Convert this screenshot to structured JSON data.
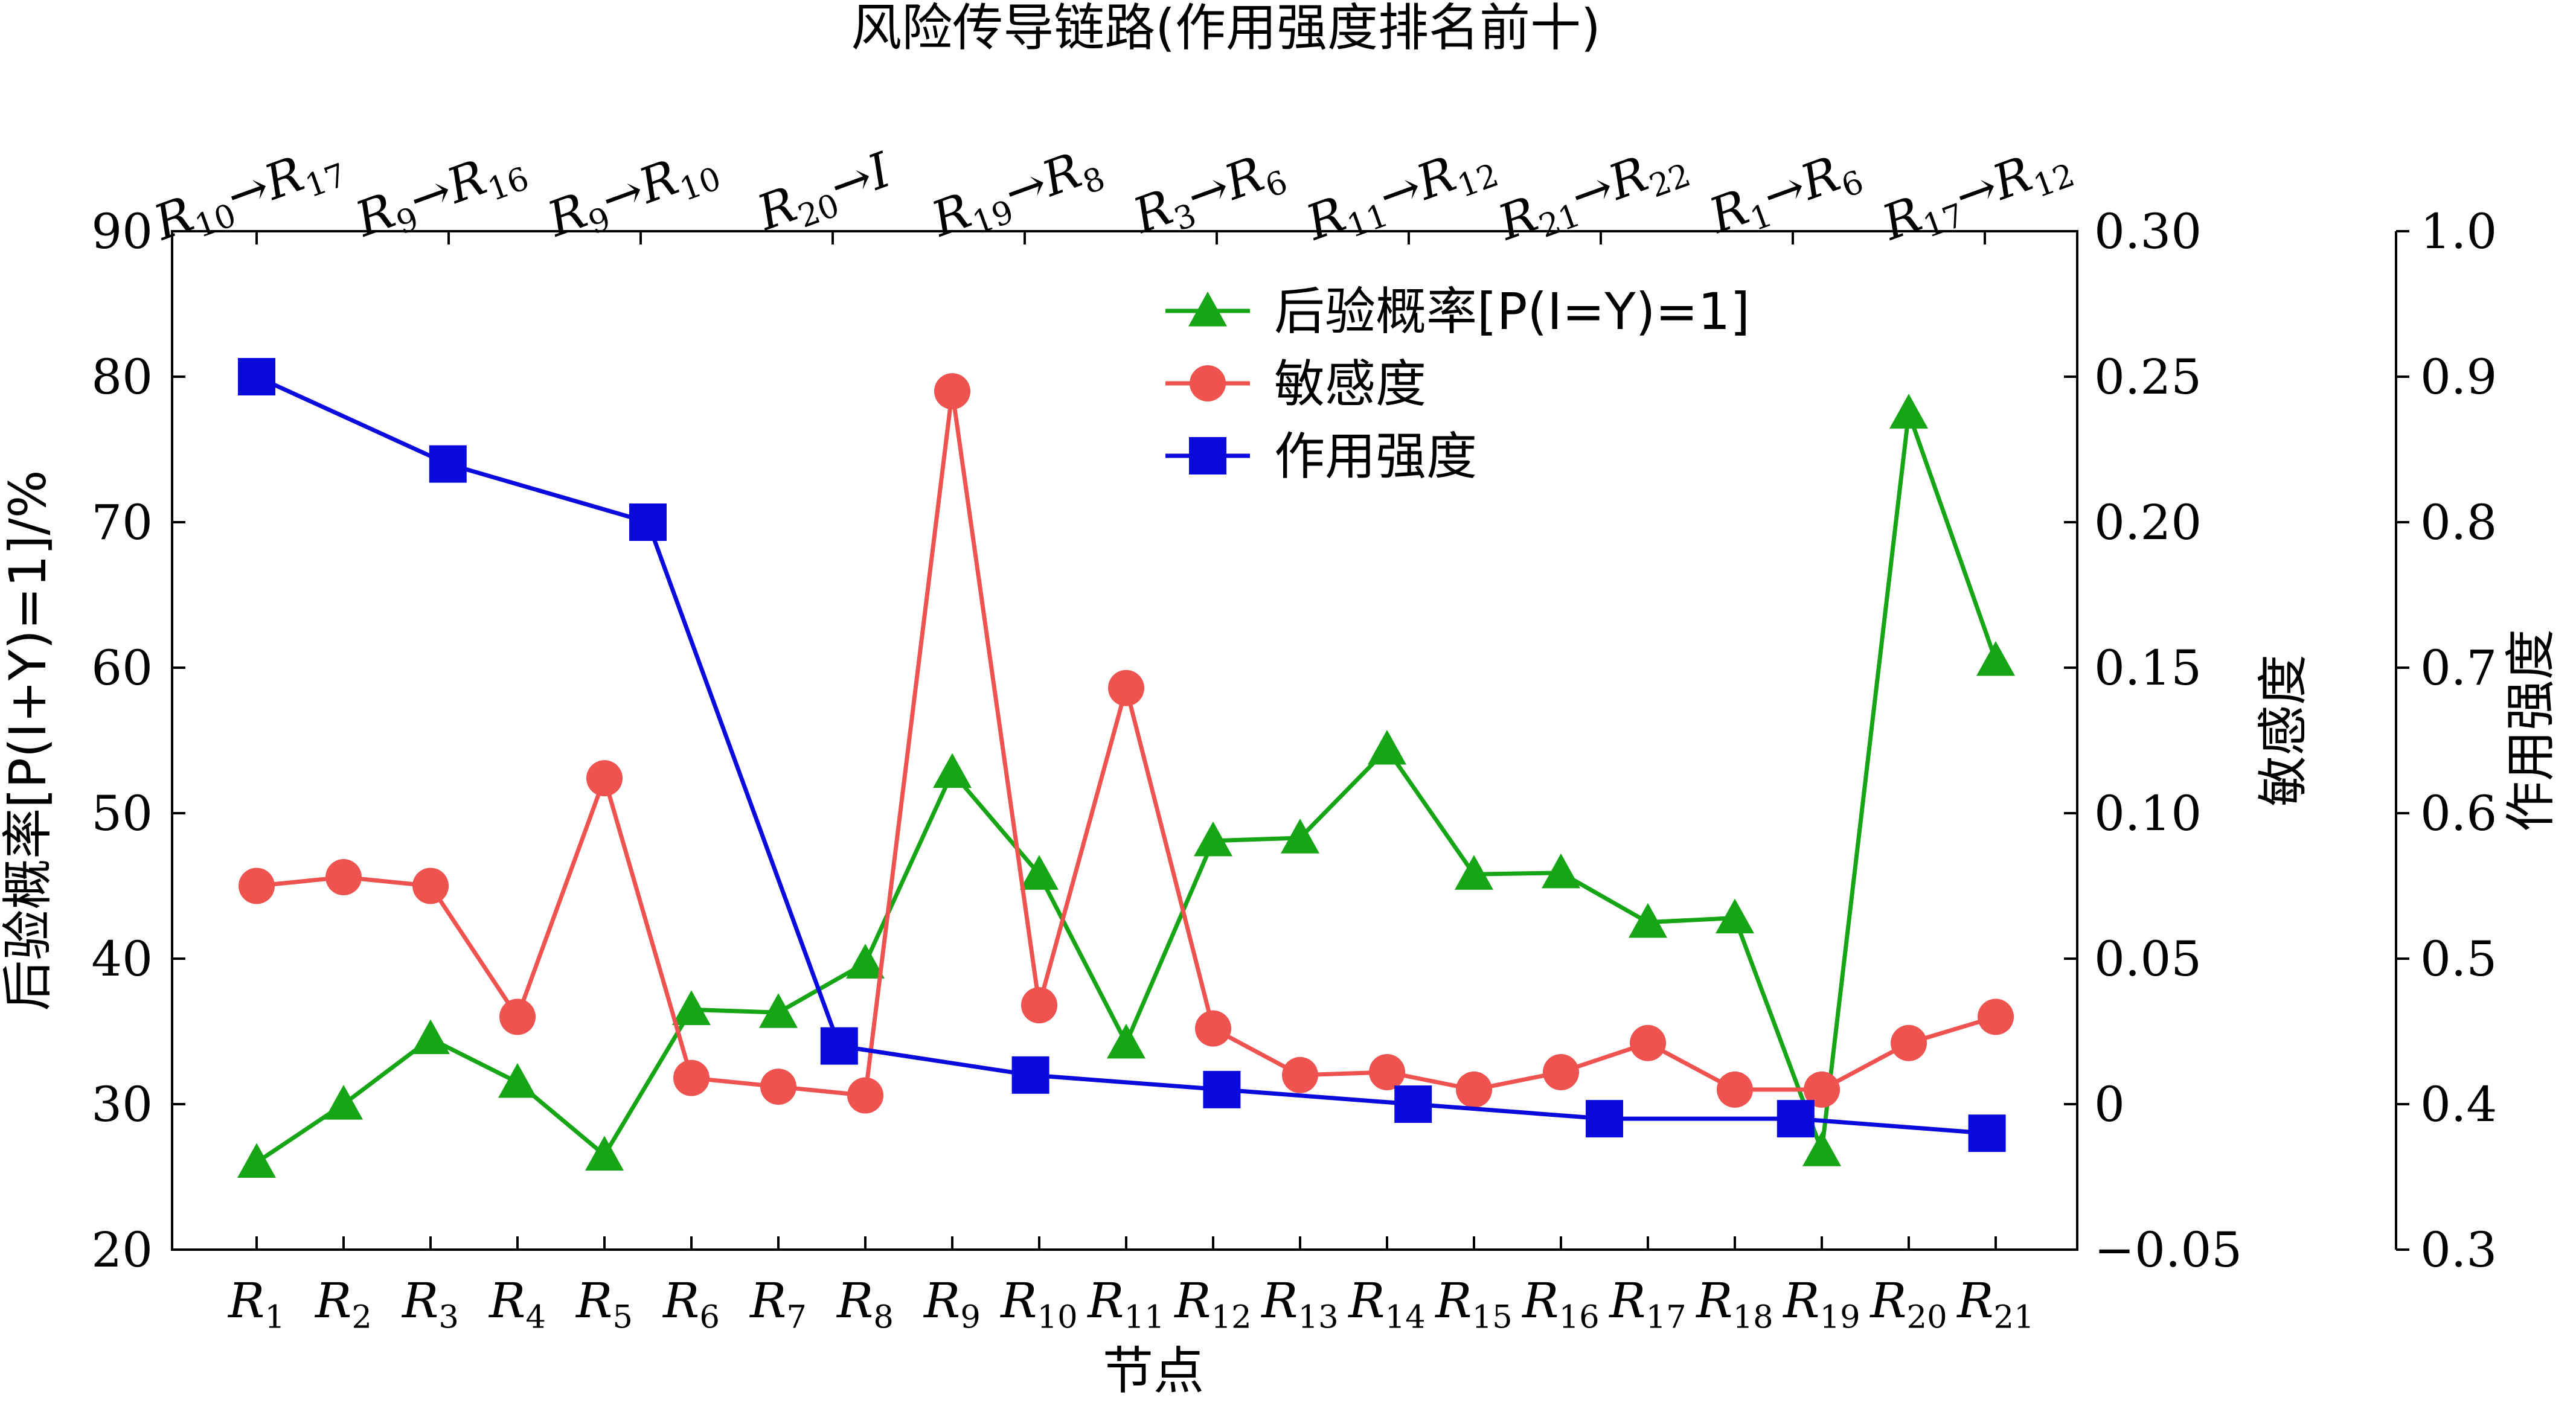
{
  "chart_data": {
    "type": "line",
    "title": "风险传导链路(作用强度排名前十)",
    "xlabel": "节点",
    "ylabel_left": "后验概率[P(I+Y)=1]/%",
    "ylabel_mid": "敏感度",
    "ylabel_right": "作用强度",
    "categories": [
      "R1",
      "R2",
      "R3",
      "R4",
      "R5",
      "R6",
      "R7",
      "R8",
      "R9",
      "R10",
      "R11",
      "R12",
      "R13",
      "R14",
      "R15",
      "R16",
      "R17",
      "R18",
      "R19",
      "R20",
      "R21"
    ],
    "top_labels": [
      "R10→R17",
      "R9→R16",
      "R9→R10",
      "R20→I",
      "R19→R8",
      "R3→R6",
      "R11→R12",
      "R21→R22",
      "R1→R6",
      "R17→R12"
    ],
    "axes": {
      "left": {
        "min": 20,
        "max": 90,
        "ticks": [
          "20",
          "30",
          "40",
          "50",
          "60",
          "70",
          "80",
          "90"
        ]
      },
      "mid": {
        "min": -0.05,
        "max": 0.3,
        "ticks": [
          "−0.05",
          "0",
          "0.05",
          "0.10",
          "0.15",
          "0.20",
          "0.25",
          "0.30"
        ]
      },
      "right": {
        "min": 0.3,
        "max": 1.0,
        "ticks": [
          "0.3",
          "0.4",
          "0.5",
          "0.6",
          "0.7",
          "0.8",
          "0.9",
          "1.0"
        ]
      }
    },
    "legend": {
      "placement": "top-center",
      "items": [
        "后验概率[P(I=Y)=1]",
        "敏感度",
        "作用强度"
      ]
    },
    "series": [
      {
        "name": "后验概率[P(I=Y)=1]",
        "axis": "left",
        "color": "#15a515",
        "marker": "triangle",
        "values": [
          26,
          30,
          34.5,
          31.5,
          26.5,
          36.5,
          36.3,
          39.7,
          52.8,
          45.8,
          34.2,
          48.1,
          48.3,
          54.4,
          45.8,
          45.9,
          42.5,
          42.8,
          26.8,
          77.5,
          60.5
        ]
      },
      {
        "name": "敏感度",
        "axis": "mid",
        "color": "#ef5350",
        "marker": "circle",
        "values": [
          0.075,
          0.078,
          0.075,
          0.03,
          0.112,
          0.009,
          0.006,
          0.003,
          0.245,
          0.034,
          0.143,
          0.026,
          0.01,
          0.011,
          0.005,
          0.011,
          0.021,
          0.005,
          0.005,
          0.021,
          0.03
        ]
      },
      {
        "name": "作用强度",
        "axis": "right",
        "color": "#0a0adf",
        "marker": "square",
        "x": [
          1,
          3.2,
          5.5,
          7.7,
          9.9,
          12.1,
          14.3,
          16.5,
          18.7,
          20.9
        ],
        "values": [
          0.9,
          0.84,
          0.8,
          0.44,
          0.42,
          0.41,
          0.4,
          0.39,
          0.39,
          0.38
        ]
      }
    ]
  }
}
